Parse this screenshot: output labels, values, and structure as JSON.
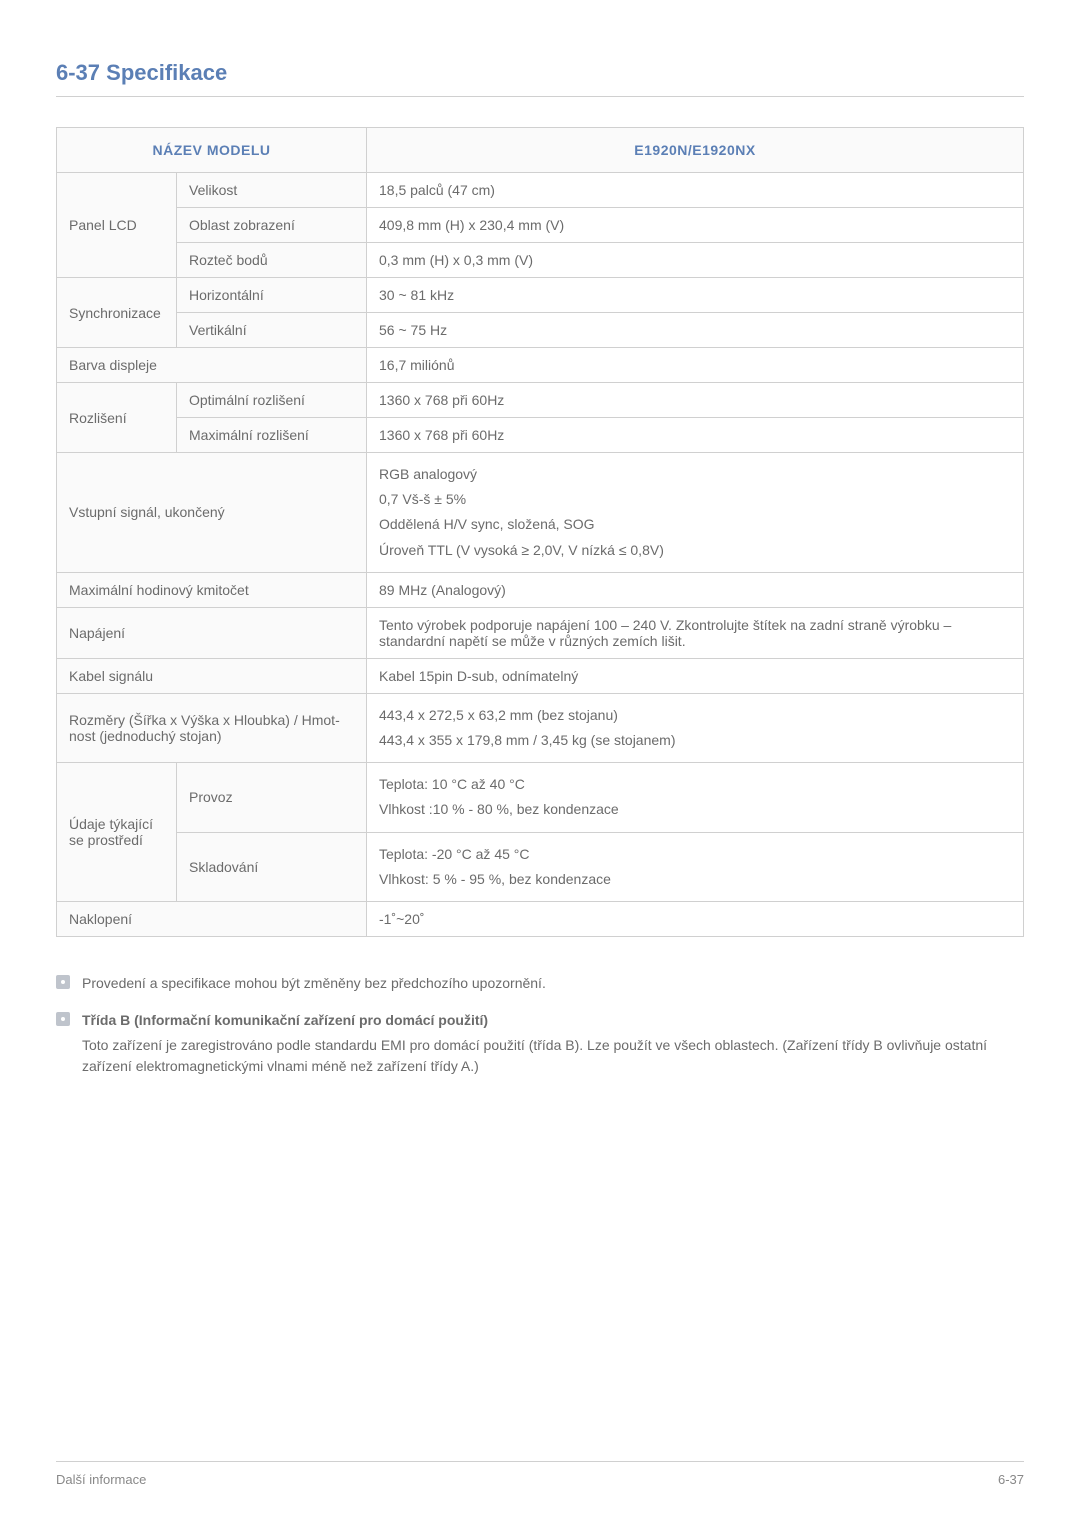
{
  "heading": "6-37  Specifikace",
  "table": {
    "header_left": "NÁZEV MODELU",
    "header_right": "E1920N/E1920NX",
    "rows": [
      {
        "cat": "Panel LCD",
        "cat_rowspan": 3,
        "sub": "Velikost",
        "val": "18,5 palců (47 cm)"
      },
      {
        "sub": "Oblast zobrazení",
        "val": "409,8 mm (H) x 230,4 mm (V)"
      },
      {
        "sub": "Rozteč bodů",
        "val": "0,3 mm (H) x 0,3 mm (V)"
      },
      {
        "cat": "Synchroni­zace",
        "cat_rowspan": 2,
        "sub": "Horizontální",
        "val": "30 ~ 81 kHz"
      },
      {
        "sub": "Vertikální",
        "val": "56 ~ 75 Hz"
      },
      {
        "cat": "Barva displeje",
        "cat_colspan": 2,
        "val": "16,7 miliónů"
      },
      {
        "cat": "Rozlišení",
        "cat_rowspan": 2,
        "sub": "Optimální rozlišení",
        "val": "1360 x 768 při 60Hz"
      },
      {
        "sub": "Maximální rozlišení",
        "val": "1360 x 768 při 60Hz"
      },
      {
        "cat": "Vstupní signál, ukončený",
        "cat_colspan": 2,
        "val_lines": [
          "RGB analogový",
          "0,7 Vš-š ± 5%",
          "Oddělená H/V sync, složená, SOG",
          "Úroveň TTL (V vysoká ≥ 2,0V, V nízká ≤ 0,8V)"
        ]
      },
      {
        "cat": "Maximální hodinový kmitočet",
        "cat_colspan": 2,
        "val": "89 MHz (Analogový)"
      },
      {
        "cat": "Napájení",
        "cat_colspan": 2,
        "val": "Tento výrobek podporuje napájení 100 – 240 V. Zkontrolujte štítek na zadní straně výrobku – standardní napětí se může v různých zemích lišit."
      },
      {
        "cat": "Kabel signálu",
        "cat_colspan": 2,
        "val": "Kabel 15pin D-sub, odnímatelný"
      },
      {
        "cat": "Rozměry (Šířka x Výška x Hloubka) / Hmot­nost (jednoduchý stojan)",
        "cat_colspan": 2,
        "val_lines": [
          "443,4 x 272,5 x 63,2 mm (bez stojanu)",
          "443,4 x 355 x 179,8 mm / 3,45 kg (se stojanem)"
        ]
      },
      {
        "cat": "Údaje týkají­cí se prostře­dí",
        "cat_rowspan": 2,
        "sub": "Provoz",
        "val_lines": [
          "Teplota: 10 °C až 40 °C",
          "Vlhkost :10 % - 80 %, bez kondenzace"
        ]
      },
      {
        "sub": "Skladování",
        "val_lines": [
          "Teplota: -20 °C až 45 °C",
          "Vlhkost: 5 % - 95 %, bez kondenzace"
        ]
      },
      {
        "cat": "Naklopení",
        "cat_colspan": 2,
        "val": "-1˚~20˚"
      }
    ]
  },
  "notes": {
    "n1": "Provedení a specifikace mohou být změněny bez předchozího upozornění.",
    "n2_title": "Třída B (Informační komunikační zařízení pro domácí použití)",
    "n2_body": "Toto zařízení je zaregistrováno podle standardu EMI pro domácí použití (třída B). Lze použít ve všech oblastech. (Zařízení třídy B ovlivňuje ostatní zařízení elektromagnetickými vlnami méně než zařízení třídy A.)"
  },
  "footer": {
    "left": "Další informace",
    "right": "6-37"
  }
}
